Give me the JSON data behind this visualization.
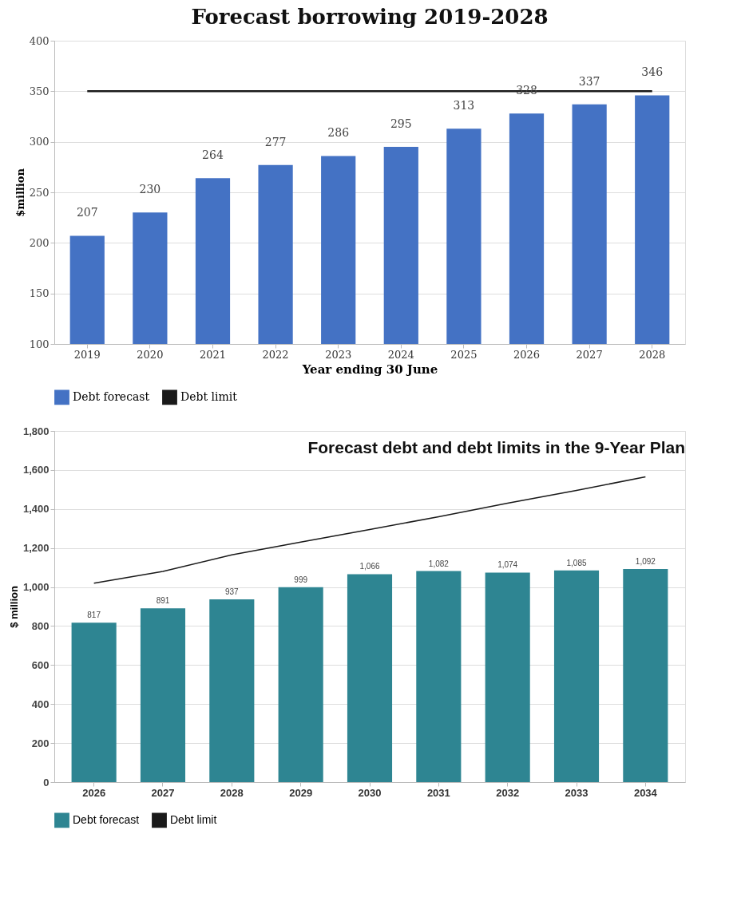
{
  "chart_data": [
    {
      "type": "bar",
      "title": "Forecast borrowing 2019-2028",
      "xlabel": "Year ending 30 June",
      "ylabel": "$million",
      "categories": [
        "2019",
        "2020",
        "2021",
        "2022",
        "2023",
        "2024",
        "2025",
        "2026",
        "2027",
        "2028"
      ],
      "series": [
        {
          "name": "Debt forecast",
          "color": "#4472c4",
          "values": [
            207,
            230,
            264,
            277,
            286,
            295,
            313,
            328,
            337,
            346
          ],
          "value_labels": [
            "207",
            "230",
            "264",
            "277",
            "286",
            "295",
            "313",
            "328",
            "337",
            "346"
          ]
        },
        {
          "name": "Debt limit",
          "type": "line",
          "color": "#1a1a1a",
          "values": [
            350,
            350,
            350,
            350,
            350,
            350,
            350,
            350,
            350,
            350
          ]
        }
      ],
      "ylim": [
        100,
        400
      ],
      "yticks": [
        100,
        150,
        200,
        250,
        300,
        350,
        400
      ],
      "grid": "y",
      "legend": "bottom"
    },
    {
      "type": "bar",
      "title": "Forecast debt and debt limits in the 9-Year Plan",
      "ylabel": "$ million",
      "categories": [
        "2026",
        "2027",
        "2028",
        "2029",
        "2030",
        "2031",
        "2032",
        "2033",
        "2034"
      ],
      "series": [
        {
          "name": "Debt forecast",
          "color": "#2e8592",
          "values": [
            817,
            891,
            937,
            999,
            1066,
            1082,
            1074,
            1085,
            1092
          ],
          "value_labels": [
            "817",
            "891",
            "937",
            "999",
            "1,066",
            "1,082",
            "1,074",
            "1,085",
            "1,092"
          ]
        },
        {
          "name": "Debt limit",
          "type": "line",
          "color": "#1a1a1a",
          "values": [
            1020,
            1080,
            1165,
            1230,
            1295,
            1360,
            1430,
            1495,
            1565
          ]
        }
      ],
      "ylim": [
        0,
        1800
      ],
      "yticks": [
        0,
        200,
        400,
        600,
        800,
        {
          "value": 1000,
          "label": "1,000"
        },
        {
          "value": 1200,
          "label": "1,200"
        },
        {
          "value": 1400,
          "label": "1,400"
        },
        {
          "value": 1600,
          "label": "1,600"
        },
        {
          "value": 1800,
          "label": "1,800"
        }
      ],
      "grid": "y",
      "legend": "bottom"
    }
  ]
}
